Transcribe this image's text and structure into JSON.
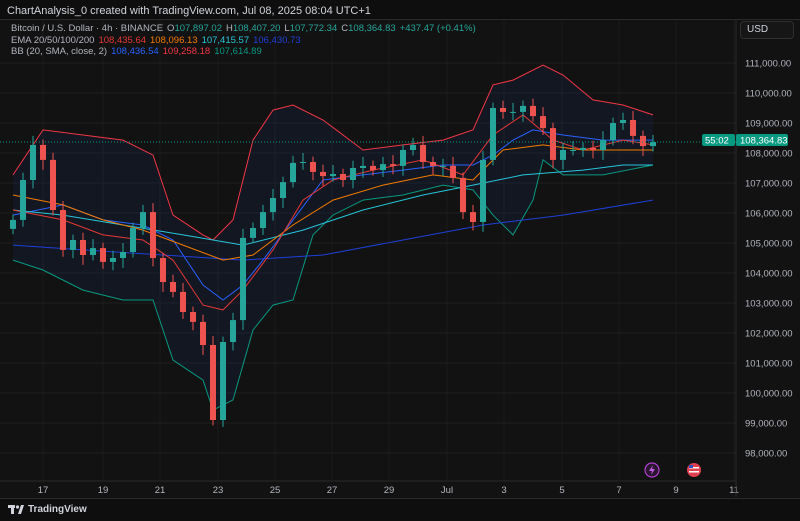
{
  "caption": "ChartAnalysis_0 created with TradingView.com, Jul 08, 2025 08:04 UTC+1",
  "legend": {
    "symbol": "Bitcoin / U.S. Dollar · 4h · BINANCE",
    "o_label": "O",
    "o": "107,897.02",
    "h_label": "H",
    "h": "108,407.20",
    "l_label": "L",
    "l": "107,772.34",
    "c_label": "C",
    "c": "108,364.83",
    "change": "+437.47 (+0.41%)",
    "ema_label": "EMA 20/50/100/200",
    "ema20": "108,435.64",
    "ema50": "108,096.13",
    "ema100": "107,415.57",
    "ema200": "106,430.73",
    "bb_label": "BB (20, SMA, close, 2)",
    "bb_basis": "108,436.54",
    "bb_upper": "109,258.18",
    "bb_lower": "107,614.89"
  },
  "currency": "USD",
  "last_price": "108,364.83",
  "countdown": "55:02",
  "footer": {
    "brand": "TradingView"
  },
  "colors": {
    "up": "#26a69a",
    "down": "#ef5350",
    "ema20": "#e53935",
    "ema50": "#f57c00",
    "ema100": "#26c6da",
    "ema200": "#1e40d8",
    "bb_basis": "#2962ff",
    "bb_upper": "#f23645",
    "bb_lower": "#089981",
    "price_tag": "#089981"
  },
  "chart_data": {
    "type": "candlestick",
    "interval": "4h",
    "ylim": [
      97500,
      112000
    ],
    "y_ticks": [
      "98,000.00",
      "99,000.00",
      "100,000.00",
      "101,000.00",
      "102,000.00",
      "103,000.00",
      "104,000.00",
      "105,000.00",
      "106,000.00",
      "107,000.00",
      "108,000.00",
      "109,000.00",
      "110,000.00",
      "111,000.00"
    ],
    "x_ticks": [
      "17",
      "19",
      "21",
      "23",
      "25",
      "27",
      "29",
      "Jul",
      "3",
      "5",
      "7",
      "9",
      "11"
    ],
    "close": [
      105770,
      107100,
      108270,
      107770,
      106100,
      104770,
      105100,
      104600,
      104830,
      104370,
      104500,
      104700,
      105500,
      106030,
      104500,
      103700,
      103370,
      102700,
      102370,
      101600,
      99100,
      101700,
      102430,
      105170,
      105500,
      106030,
      106500,
      107030,
      107670,
      107700,
      107370,
      107230,
      107300,
      107100,
      107500,
      107570,
      107430,
      107630,
      107570,
      108100,
      108270,
      107700,
      107570,
      107570,
      107170,
      106030,
      105700,
      107770,
      109500,
      109370,
      109370,
      109570,
      109230,
      108830,
      107770,
      108100,
      108100,
      108170,
      108100,
      108430,
      109000,
      109100,
      108570,
      108230,
      108364.83
    ],
    "lines": {
      "bb_upper": [
        [
          0,
          107270
        ],
        [
          3,
          108770
        ],
        [
          7,
          108600
        ],
        [
          11,
          108430
        ],
        [
          14,
          107930
        ],
        [
          16,
          105930
        ],
        [
          19,
          105270
        ],
        [
          20,
          105100
        ],
        [
          22,
          105770
        ],
        [
          24,
          108430
        ],
        [
          26,
          109430
        ],
        [
          28,
          109600
        ],
        [
          31,
          109100
        ],
        [
          35,
          108100
        ],
        [
          39,
          108270
        ],
        [
          43,
          108430
        ],
        [
          46,
          108770
        ],
        [
          48,
          110270
        ],
        [
          50,
          110430
        ],
        [
          53,
          110930
        ],
        [
          55,
          110600
        ],
        [
          58,
          109770
        ],
        [
          61,
          109600
        ],
        [
          64,
          109270
        ]
      ],
      "bb_lower": [
        [
          0,
          104430
        ],
        [
          3,
          104100
        ],
        [
          7,
          103430
        ],
        [
          11,
          103100
        ],
        [
          14,
          103100
        ],
        [
          16,
          101100
        ],
        [
          19,
          100430
        ],
        [
          20,
          99430
        ],
        [
          22,
          99770
        ],
        [
          24,
          102100
        ],
        [
          26,
          102930
        ],
        [
          28,
          103100
        ],
        [
          30,
          105270
        ],
        [
          32,
          105930
        ],
        [
          35,
          106430
        ],
        [
          39,
          106600
        ],
        [
          43,
          106930
        ],
        [
          46,
          106770
        ],
        [
          48,
          105930
        ],
        [
          50,
          105270
        ],
        [
          52,
          106430
        ],
        [
          53,
          107770
        ],
        [
          55,
          107270
        ],
        [
          59,
          107270
        ],
        [
          64,
          107600
        ]
      ],
      "bb_basis": [
        [
          0,
          105930
        ],
        [
          5,
          106270
        ],
        [
          9,
          105770
        ],
        [
          13,
          105600
        ],
        [
          16,
          105100
        ],
        [
          19,
          103600
        ],
        [
          21,
          103100
        ],
        [
          23,
          103600
        ],
        [
          25,
          104430
        ],
        [
          28,
          105770
        ],
        [
          31,
          107100
        ],
        [
          35,
          107270
        ],
        [
          39,
          107430
        ],
        [
          43,
          107600
        ],
        [
          46,
          107600
        ],
        [
          48,
          107930
        ],
        [
          50,
          108430
        ],
        [
          52,
          108770
        ],
        [
          55,
          108600
        ],
        [
          59,
          108430
        ],
        [
          64,
          108430
        ]
      ],
      "ema20": [
        [
          0,
          106100
        ],
        [
          5,
          105770
        ],
        [
          9,
          105270
        ],
        [
          13,
          105100
        ],
        [
          16,
          104430
        ],
        [
          19,
          102930
        ],
        [
          21,
          102770
        ],
        [
          23,
          103430
        ],
        [
          26,
          104770
        ],
        [
          29,
          106430
        ],
        [
          32,
          107100
        ],
        [
          36,
          107430
        ],
        [
          41,
          107770
        ],
        [
          45,
          107270
        ],
        [
          48,
          108600
        ],
        [
          51,
          109270
        ],
        [
          54,
          108430
        ],
        [
          57,
          108100
        ],
        [
          61,
          108430
        ],
        [
          64,
          108270
        ]
      ],
      "ema50": [
        [
          0,
          106600
        ],
        [
          5,
          106270
        ],
        [
          9,
          105770
        ],
        [
          13,
          105430
        ],
        [
          17,
          104930
        ],
        [
          21,
          104430
        ],
        [
          24,
          104600
        ],
        [
          28,
          105600
        ],
        [
          32,
          106430
        ],
        [
          37,
          106930
        ],
        [
          42,
          107270
        ],
        [
          46,
          107100
        ],
        [
          49,
          108100
        ],
        [
          53,
          108270
        ],
        [
          57,
          108100
        ],
        [
          61,
          108100
        ],
        [
          64,
          108100
        ]
      ],
      "ema100": [
        [
          0,
          106100
        ],
        [
          5,
          105930
        ],
        [
          11,
          105600
        ],
        [
          17,
          105270
        ],
        [
          23,
          104930
        ],
        [
          29,
          105430
        ],
        [
          35,
          106100
        ],
        [
          41,
          106600
        ],
        [
          46,
          106930
        ],
        [
          51,
          107270
        ],
        [
          57,
          107430
        ],
        [
          61,
          107600
        ],
        [
          64,
          107600
        ]
      ],
      "ema200": [
        [
          0,
          104930
        ],
        [
          7,
          104770
        ],
        [
          15,
          104600
        ],
        [
          23,
          104430
        ],
        [
          31,
          104600
        ],
        [
          39,
          105100
        ],
        [
          47,
          105600
        ],
        [
          55,
          105930
        ],
        [
          64,
          106430
        ]
      ]
    }
  }
}
